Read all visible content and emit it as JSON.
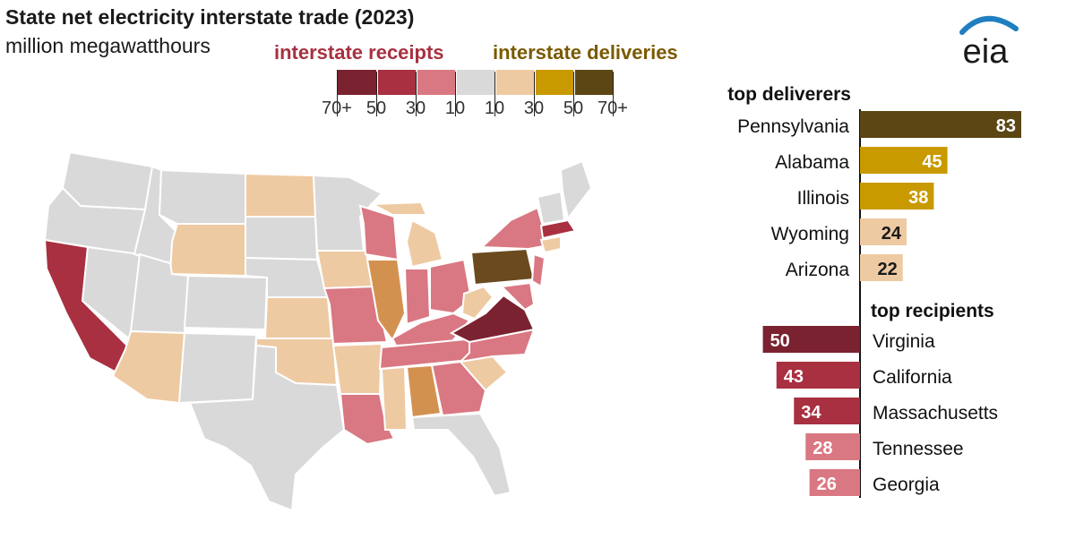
{
  "header": {
    "title": "State net electricity interstate trade (2023)",
    "subtitle": "million megawatthours"
  },
  "legend": {
    "receipts_label": "interstate receipts",
    "deliveries_label": "interstate deliveries",
    "ticks": [
      "70+",
      "50",
      "30",
      "10",
      "10",
      "30",
      "50",
      "70+"
    ],
    "colors": [
      "#7b2230",
      "#a83040",
      "#d97882",
      "#d9d9d9",
      "#eecaa2",
      "#c89a00",
      "#5c4714"
    ]
  },
  "logo": {
    "text": "eia"
  },
  "colors": {
    "receipts_label": "#a83040",
    "deliveries_label": "#7a5a00",
    "map_gray": "#d9d9d9",
    "bar_text_light": "#ffffff",
    "bar_text_dark": "#1a1a1a"
  },
  "chart_data": {
    "type": "bar",
    "unit": "million megawatthours",
    "top_deliverers": {
      "label": "top deliverers",
      "categories": [
        "Pennsylvania",
        "Alabama",
        "Illinois",
        "Wyoming",
        "Arizona"
      ],
      "values": [
        83,
        45,
        38,
        24,
        22
      ],
      "colors": [
        "#5c4714",
        "#c89a00",
        "#c89a00",
        "#eecaa2",
        "#eecaa2"
      ]
    },
    "top_recipients": {
      "label": "top recipients",
      "categories": [
        "Virginia",
        "California",
        "Massachusetts",
        "Tennessee",
        "Georgia"
      ],
      "values": [
        50,
        43,
        34,
        28,
        26
      ],
      "colors": [
        "#7b2230",
        "#a83040",
        "#a83040",
        "#d97882",
        "#d97882"
      ]
    }
  }
}
